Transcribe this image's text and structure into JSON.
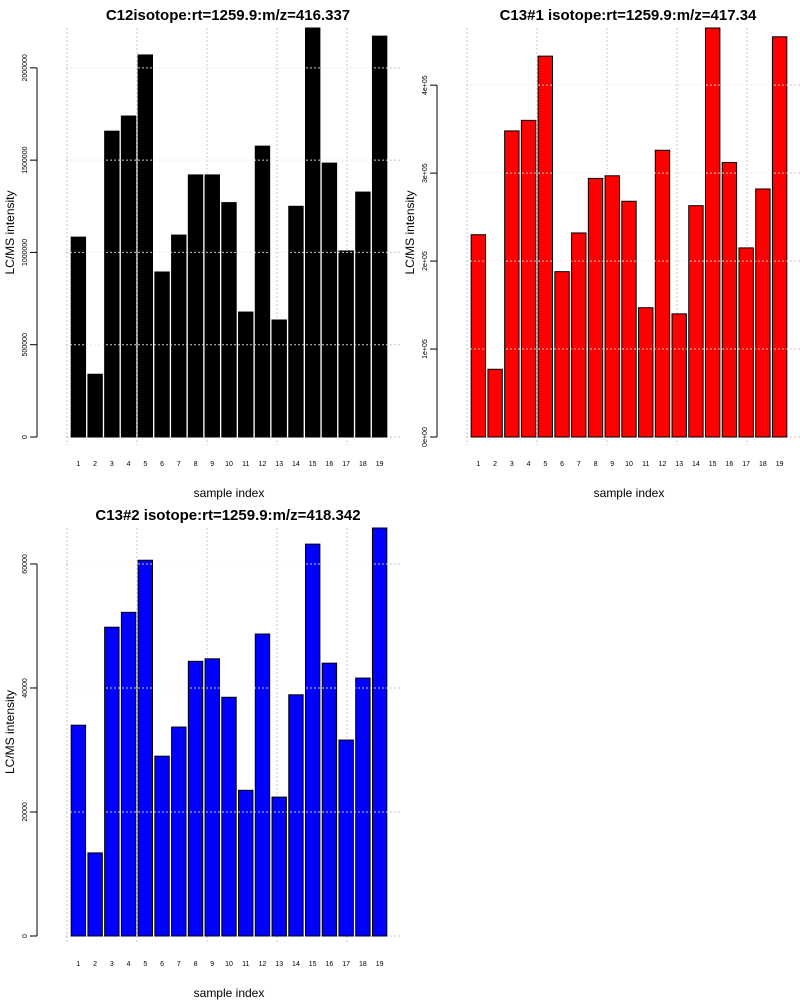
{
  "chart_data": [
    {
      "type": "bar",
      "title": "C12isotope:rt=1259.9:m/z=416.337",
      "xlabel": "sample index",
      "ylabel": "LC/MS intensity",
      "categories": [
        "1",
        "2",
        "3",
        "4",
        "5",
        "6",
        "7",
        "8",
        "9",
        "10",
        "11",
        "12",
        "13",
        "14",
        "15",
        "16",
        "17",
        "18",
        "19"
      ],
      "values": [
        1083000,
        340000,
        1657000,
        1739000,
        2070000,
        894000,
        1094000,
        1420000,
        1420000,
        1270000,
        677000,
        1576000,
        634000,
        1250000,
        2216000,
        1484000,
        1008000,
        1327000,
        2172000
      ],
      "yticks": [
        0,
        500000,
        1000000,
        1500000,
        2000000
      ],
      "ytick_labels": [
        "0",
        "500000",
        "1000000",
        "1500000",
        "2000000"
      ],
      "ylim": [
        0,
        2216000
      ],
      "bar_color": "#000000",
      "grid": true
    },
    {
      "type": "bar",
      "title": "C13#1 isotope:rt=1259.9:m/z=417.34",
      "xlabel": "sample index",
      "ylabel": "LC/MS intensity",
      "categories": [
        "1",
        "2",
        "3",
        "4",
        "5",
        "6",
        "7",
        "8",
        "9",
        "10",
        "11",
        "12",
        "13",
        "14",
        "15",
        "16",
        "17",
        "18",
        "19"
      ],
      "values": [
        230000,
        77000,
        348000,
        360000,
        433000,
        188000,
        232000,
        294000,
        297000,
        268000,
        147000,
        326000,
        140000,
        263000,
        465000,
        312000,
        215000,
        282000,
        455000
      ],
      "yticks": [
        0,
        100000,
        200000,
        300000,
        400000
      ],
      "ytick_labels": [
        "0e+00",
        "1e+05",
        "2e+05",
        "3e+05",
        "4e+05"
      ],
      "ylim": [
        0,
        465000
      ],
      "bar_color": "#ff0000",
      "grid": true
    },
    {
      "type": "bar",
      "title": "C13#2 isotope:rt=1259.9:m/z=418.342",
      "xlabel": "sample index",
      "ylabel": "LC/MS intensity",
      "categories": [
        "1",
        "2",
        "3",
        "4",
        "5",
        "6",
        "7",
        "8",
        "9",
        "10",
        "11",
        "12",
        "13",
        "14",
        "15",
        "16",
        "17",
        "18",
        "19"
      ],
      "values": [
        34000,
        13400,
        49800,
        52200,
        60600,
        29000,
        33700,
        44300,
        44700,
        38500,
        23500,
        48700,
        22400,
        38900,
        63200,
        44000,
        31600,
        41600,
        65800
      ],
      "yticks": [
        0,
        20000,
        40000,
        60000
      ],
      "ytick_labels": [
        "0",
        "20000",
        "40000",
        "60000"
      ],
      "ylim": [
        0,
        65800
      ],
      "bar_color": "#0000ff",
      "grid": true
    }
  ]
}
